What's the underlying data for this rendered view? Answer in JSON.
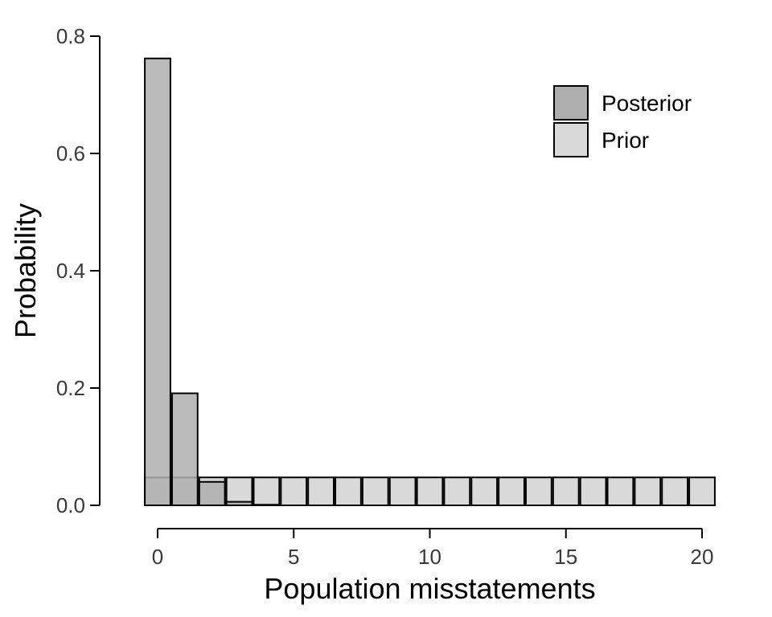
{
  "chart_data": {
    "type": "bar",
    "xlabel": "Population misstatements",
    "ylabel": "Probability",
    "ylim": [
      0,
      0.8
    ],
    "xlim": [
      0,
      20
    ],
    "yticks": [
      "0.0",
      "0.2",
      "0.4",
      "0.6",
      "0.8"
    ],
    "xticks": [
      "0",
      "5",
      "10",
      "15",
      "20"
    ],
    "legend_position": "top-right",
    "grid": false,
    "x": [
      0,
      1,
      2,
      3,
      4,
      5,
      6,
      7,
      8,
      9,
      10,
      11,
      12,
      13,
      14,
      15,
      16,
      17,
      18,
      19,
      20
    ],
    "series": [
      {
        "name": "Posterior",
        "color": "#aeaeae",
        "values": [
          0.762,
          0.191,
          0.04,
          0.006,
          0.001,
          0,
          0,
          0,
          0,
          0,
          0,
          0,
          0,
          0,
          0,
          0,
          0,
          0,
          0,
          0,
          0
        ]
      },
      {
        "name": "Prior",
        "color": "#d9d9d9",
        "values": [
          0.0476,
          0.0476,
          0.0476,
          0.0476,
          0.0476,
          0.0476,
          0.0476,
          0.0476,
          0.0476,
          0.0476,
          0.0476,
          0.0476,
          0.0476,
          0.0476,
          0.0476,
          0.0476,
          0.0476,
          0.0476,
          0.0476,
          0.0476,
          0.0476
        ]
      }
    ]
  }
}
